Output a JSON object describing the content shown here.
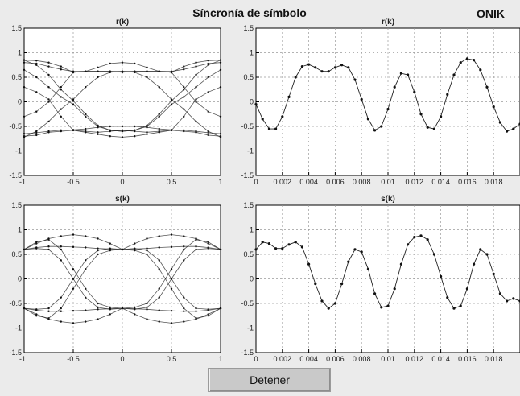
{
  "figure": {
    "title": "Síncronía de símbolo",
    "brand": "ONIK"
  },
  "controls": {
    "stop_label": "Detener"
  },
  "colors": {
    "trace": "#222222",
    "background": "#ebebeb",
    "axes_background": "#ffffff"
  },
  "chart_data": [
    {
      "id": "eye_r",
      "type": "line",
      "title": "r(k)",
      "xlabel": "",
      "ylabel": "",
      "xlim": [
        -1,
        1
      ],
      "ylim": [
        -1.5,
        1.5
      ],
      "xticks": [
        "-1",
        "-0.5",
        "0",
        "0.5",
        "1"
      ],
      "yticks": [
        "-1.5",
        "-1",
        "-0.5",
        "0",
        "0.5",
        "1",
        "1.5"
      ],
      "grid": true,
      "x": [
        -1,
        -0.875,
        -0.75,
        -0.625,
        -0.5,
        -0.375,
        -0.25,
        -0.125,
        0,
        0.125,
        0.25,
        0.375,
        0.5,
        0.625,
        0.75,
        0.875,
        1
      ],
      "series": [
        {
          "values": [
            0.85,
            0.84,
            0.8,
            0.72,
            0.6,
            0.62,
            0.7,
            0.78,
            0.8,
            0.78,
            0.7,
            0.62,
            0.6,
            0.72,
            0.8,
            0.84,
            0.85
          ]
        },
        {
          "values": [
            0.8,
            0.78,
            0.72,
            0.66,
            0.62,
            0.62,
            0.62,
            0.62,
            0.62,
            0.62,
            0.62,
            0.62,
            0.62,
            0.66,
            0.72,
            0.78,
            0.8
          ]
        },
        {
          "values": [
            0.3,
            0.2,
            0.05,
            -0.3,
            -0.58,
            -0.6,
            -0.62,
            -0.6,
            -0.58,
            -0.6,
            -0.62,
            -0.6,
            -0.58,
            -0.3,
            0.05,
            0.2,
            0.3
          ]
        },
        {
          "values": [
            -0.7,
            -0.68,
            -0.62,
            -0.6,
            -0.58,
            -0.62,
            -0.66,
            -0.7,
            -0.72,
            -0.7,
            -0.66,
            -0.62,
            -0.58,
            -0.6,
            -0.62,
            -0.68,
            -0.7
          ]
        },
        {
          "values": [
            0.85,
            0.75,
            0.55,
            0.25,
            0.02,
            -0.25,
            -0.48,
            -0.58,
            -0.6,
            -0.58,
            -0.48,
            -0.25,
            0.02,
            0.25,
            0.55,
            0.75,
            0.85
          ]
        },
        {
          "values": [
            -0.72,
            -0.6,
            -0.4,
            -0.15,
            0.05,
            0.3,
            0.5,
            0.6,
            0.62,
            0.6,
            0.5,
            0.3,
            0.05,
            -0.15,
            -0.4,
            -0.6,
            -0.72
          ]
        },
        {
          "values": [
            0.65,
            0.5,
            0.3,
            0.1,
            -0.05,
            -0.3,
            -0.5,
            -0.58,
            -0.6,
            -0.58,
            -0.5,
            -0.3,
            -0.05,
            0.1,
            0.3,
            0.5,
            0.65
          ]
        },
        {
          "values": [
            -0.3,
            -0.2,
            0,
            0.3,
            0.6,
            0.62,
            0.62,
            0.62,
            0.6,
            0.62,
            0.62,
            0.62,
            0.6,
            0.3,
            0,
            -0.2,
            -0.3
          ]
        },
        {
          "values": [
            -0.65,
            -0.63,
            -0.6,
            -0.58,
            -0.57,
            -0.55,
            -0.52,
            -0.5,
            -0.5,
            -0.5,
            -0.52,
            -0.55,
            -0.57,
            -0.58,
            -0.6,
            -0.63,
            -0.65
          ]
        }
      ]
    },
    {
      "id": "time_r",
      "type": "line",
      "title": "r(k)",
      "xlabel": "",
      "ylabel": "",
      "xlim": [
        0,
        0.02
      ],
      "ylim": [
        -1.5,
        1.5
      ],
      "xticks": [
        "0",
        "0.002",
        "0.004",
        "0.006",
        "0.008",
        "0.01",
        "0.012",
        "0.014",
        "0.016",
        "0.018"
      ],
      "yticks": [
        "-1.5",
        "-1",
        "-0.5",
        "0",
        "0.5",
        "1",
        "1.5"
      ],
      "grid": true,
      "x": [
        0,
        0.0005,
        0.001,
        0.0015,
        0.002,
        0.0025,
        0.003,
        0.0035,
        0.004,
        0.0045,
        0.005,
        0.0055,
        0.006,
        0.0065,
        0.007,
        0.0075,
        0.008,
        0.0085,
        0.009,
        0.0095,
        0.01,
        0.0105,
        0.011,
        0.0115,
        0.012,
        0.0125,
        0.013,
        0.0135,
        0.014,
        0.0145,
        0.015,
        0.0155,
        0.016,
        0.0165,
        0.017,
        0.0175,
        0.018,
        0.0185,
        0.019,
        0.0195,
        0.02
      ],
      "values": [
        -0.05,
        -0.35,
        -0.55,
        -0.55,
        -0.3,
        0.1,
        0.5,
        0.72,
        0.76,
        0.7,
        0.62,
        0.62,
        0.7,
        0.75,
        0.7,
        0.45,
        0.05,
        -0.35,
        -0.58,
        -0.5,
        -0.15,
        0.3,
        0.58,
        0.55,
        0.2,
        -0.25,
        -0.52,
        -0.55,
        -0.3,
        0.15,
        0.55,
        0.8,
        0.88,
        0.85,
        0.65,
        0.3,
        -0.1,
        -0.42,
        -0.6,
        -0.55,
        -0.45
      ]
    },
    {
      "id": "eye_s",
      "type": "line",
      "title": "s(k)",
      "xlabel": "",
      "ylabel": "",
      "xlim": [
        -1,
        1
      ],
      "ylim": [
        -1.5,
        1.5
      ],
      "xticks": [
        "-1",
        "-0.5",
        "0",
        "0.5",
        "1"
      ],
      "yticks": [
        "-1.5",
        "-1",
        "-0.5",
        "0",
        "0.5",
        "1",
        "1.5"
      ],
      "grid": true,
      "x": [
        -1,
        -0.875,
        -0.75,
        -0.625,
        -0.5,
        -0.375,
        -0.25,
        -0.125,
        0,
        0.125,
        0.25,
        0.375,
        0.5,
        0.625,
        0.75,
        0.875,
        1
      ],
      "series": [
        {
          "values": [
            0.6,
            0.72,
            0.82,
            0.87,
            0.9,
            0.87,
            0.82,
            0.72,
            0.6,
            0.72,
            0.82,
            0.87,
            0.9,
            0.87,
            0.82,
            0.72,
            0.6
          ]
        },
        {
          "values": [
            -0.6,
            -0.72,
            -0.82,
            -0.87,
            -0.9,
            -0.87,
            -0.82,
            -0.72,
            -0.6,
            -0.72,
            -0.82,
            -0.87,
            -0.9,
            -0.87,
            -0.82,
            -0.72,
            -0.6
          ]
        },
        {
          "values": [
            0.6,
            0.62,
            0.6,
            0.38,
            0,
            -0.38,
            -0.58,
            -0.62,
            -0.6,
            -0.62,
            -0.58,
            -0.38,
            0,
            0.38,
            0.6,
            0.62,
            0.6
          ]
        },
        {
          "values": [
            -0.6,
            -0.62,
            -0.6,
            -0.38,
            0,
            0.38,
            0.58,
            0.62,
            0.6,
            0.62,
            0.58,
            0.38,
            0,
            -0.38,
            -0.6,
            -0.62,
            -0.6
          ]
        },
        {
          "values": [
            0.6,
            0.64,
            0.66,
            0.66,
            0.65,
            0.64,
            0.62,
            0.61,
            0.6,
            0.61,
            0.62,
            0.64,
            0.65,
            0.66,
            0.66,
            0.64,
            0.6
          ]
        },
        {
          "values": [
            -0.6,
            -0.64,
            -0.66,
            -0.66,
            -0.65,
            -0.64,
            -0.62,
            -0.61,
            -0.6,
            -0.61,
            -0.62,
            -0.64,
            -0.65,
            -0.66,
            -0.66,
            -0.64,
            -0.6
          ]
        },
        {
          "values": [
            0.6,
            0.75,
            0.8,
            0.6,
            0.2,
            -0.2,
            -0.5,
            -0.58,
            -0.6,
            -0.58,
            -0.5,
            -0.2,
            0.2,
            0.6,
            0.8,
            0.75,
            0.6
          ]
        },
        {
          "values": [
            -0.6,
            -0.75,
            -0.8,
            -0.6,
            -0.2,
            0.2,
            0.5,
            0.58,
            0.6,
            0.58,
            0.5,
            0.2,
            -0.2,
            -0.6,
            -0.8,
            -0.75,
            -0.6
          ]
        }
      ]
    },
    {
      "id": "time_s",
      "type": "line",
      "title": "s(k)",
      "xlabel": "",
      "ylabel": "",
      "xlim": [
        0,
        0.02
      ],
      "ylim": [
        -1.5,
        1.5
      ],
      "xticks": [
        "0",
        "0.002",
        "0.004",
        "0.006",
        "0.008",
        "0.01",
        "0.012",
        "0.014",
        "0.016",
        "0.018"
      ],
      "yticks": [
        "-1.5",
        "-1",
        "-0.5",
        "0",
        "0.5",
        "1",
        "1.5"
      ],
      "grid": true,
      "x": [
        0,
        0.0005,
        0.001,
        0.0015,
        0.002,
        0.0025,
        0.003,
        0.0035,
        0.004,
        0.0045,
        0.005,
        0.0055,
        0.006,
        0.0065,
        0.007,
        0.0075,
        0.008,
        0.0085,
        0.009,
        0.0095,
        0.01,
        0.0105,
        0.011,
        0.0115,
        0.012,
        0.0125,
        0.013,
        0.0135,
        0.014,
        0.0145,
        0.015,
        0.0155,
        0.016,
        0.0165,
        0.017,
        0.0175,
        0.018,
        0.0185,
        0.019,
        0.0195,
        0.02
      ],
      "values": [
        0.6,
        0.75,
        0.72,
        0.62,
        0.62,
        0.7,
        0.75,
        0.65,
        0.3,
        -0.1,
        -0.45,
        -0.6,
        -0.5,
        -0.1,
        0.35,
        0.6,
        0.55,
        0.2,
        -0.3,
        -0.58,
        -0.55,
        -0.2,
        0.3,
        0.7,
        0.85,
        0.88,
        0.8,
        0.5,
        0.05,
        -0.38,
        -0.6,
        -0.55,
        -0.2,
        0.3,
        0.6,
        0.5,
        0.1,
        -0.3,
        -0.45,
        -0.4,
        -0.45
      ]
    }
  ]
}
